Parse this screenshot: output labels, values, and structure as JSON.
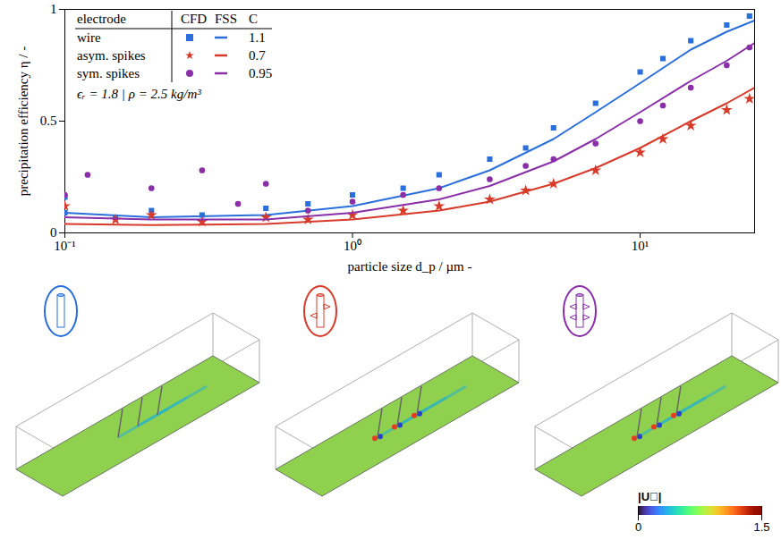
{
  "chart_data": {
    "type": "scatter",
    "x_label": "particle size d_p / µm -",
    "y_label": "precipitation efficiency η / -",
    "log": "x",
    "xlim": [
      0.1,
      25
    ],
    "xticks": [
      {
        "value": 0.1,
        "label": "10⁻¹"
      },
      {
        "value": 1,
        "label": "10⁰"
      },
      {
        "value": 10,
        "label": "10¹"
      }
    ],
    "ylim": [
      0,
      1
    ],
    "yticks": [
      0,
      0.5,
      1
    ],
    "legend": "top-left",
    "legend_headers": [
      "electrode",
      "CFD",
      "FSS",
      "C"
    ],
    "annotation": "ϵᵣ = 1.8 | ρ = 2.5 kg/m³",
    "fss_x": [
      0.1,
      0.2,
      0.5,
      1,
      2,
      3,
      5,
      7,
      10,
      15,
      20,
      25
    ],
    "series": [
      {
        "name": "wire",
        "color": "#2a6fdb",
        "marker": "square",
        "C": 1.1,
        "cfd_x": [
          0.1,
          0.1,
          0.15,
          0.2,
          0.3,
          0.5,
          0.7,
          1,
          1.5,
          2,
          3,
          4,
          5,
          7,
          10,
          12,
          15,
          20,
          24
        ],
        "cfd_values": [
          0.09,
          0.16,
          0.07,
          0.1,
          0.08,
          0.11,
          0.13,
          0.17,
          0.2,
          0.26,
          0.33,
          0.38,
          0.47,
          0.58,
          0.72,
          0.78,
          0.86,
          0.93,
          0.97
        ],
        "fss_values": [
          0.09,
          0.07,
          0.08,
          0.12,
          0.2,
          0.28,
          0.42,
          0.54,
          0.67,
          0.82,
          0.9,
          0.95
        ]
      },
      {
        "name": "asym. spikes",
        "color": "#d83a2a",
        "marker": "star",
        "C": 0.7,
        "cfd_x": [
          0.1,
          0.15,
          0.2,
          0.3,
          0.5,
          0.7,
          1,
          1.5,
          2,
          3,
          4,
          5,
          7,
          10,
          12,
          15,
          20,
          24
        ],
        "cfd_values": [
          0.12,
          0.06,
          0.08,
          0.05,
          0.07,
          0.06,
          0.08,
          0.1,
          0.12,
          0.15,
          0.19,
          0.22,
          0.28,
          0.36,
          0.42,
          0.48,
          0.55,
          0.6
        ],
        "fss_values": [
          0.04,
          0.035,
          0.04,
          0.06,
          0.1,
          0.14,
          0.22,
          0.29,
          0.38,
          0.5,
          0.58,
          0.65
        ]
      },
      {
        "name": "sym. spikes",
        "color": "#8a2fa8",
        "marker": "circle",
        "C": 0.95,
        "cfd_x": [
          0.1,
          0.12,
          0.2,
          0.3,
          0.4,
          0.5,
          0.7,
          1,
          1.5,
          2,
          3,
          4,
          5,
          7,
          10,
          12,
          15,
          20,
          24
        ],
        "cfd_values": [
          0.17,
          0.26,
          0.2,
          0.28,
          0.13,
          0.22,
          0.1,
          0.14,
          0.17,
          0.2,
          0.24,
          0.3,
          0.33,
          0.4,
          0.5,
          0.57,
          0.65,
          0.75,
          0.83
        ],
        "fss_values": [
          0.07,
          0.06,
          0.06,
          0.09,
          0.15,
          0.21,
          0.32,
          0.42,
          0.54,
          0.68,
          0.77,
          0.85
        ]
      }
    ],
    "colorbar": {
      "label": "|U⃗|",
      "range": [
        0,
        1.5
      ],
      "ticks": [
        0,
        1.5
      ]
    }
  }
}
